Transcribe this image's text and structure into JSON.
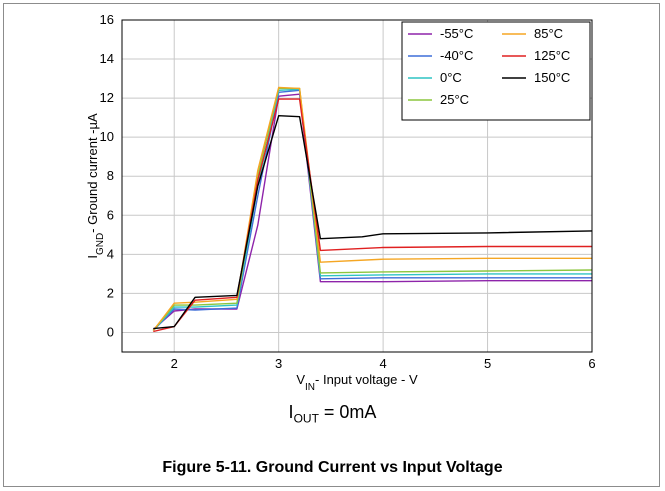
{
  "chart_data": {
    "type": "line",
    "title": "",
    "xlabel": {
      "main": "V",
      "sub": "IN",
      "rest": "- Input voltage - V"
    },
    "ylabel": {
      "main": "I",
      "sub": "GND",
      "rest": "- Ground current -µA"
    },
    "xlim": [
      1.5,
      6
    ],
    "ylim": [
      -1,
      16
    ],
    "xticks": [
      2,
      3,
      4,
      5,
      6
    ],
    "yticks": [
      0,
      2,
      4,
      6,
      8,
      10,
      12,
      14,
      16
    ],
    "grid": true,
    "legend": "top-right",
    "series": [
      {
        "name": "-55°C",
        "color": "#8e24aa",
        "x": [
          1.8,
          2.0,
          2.2,
          2.6,
          2.8,
          3.0,
          3.2,
          3.4,
          4.0,
          5.0,
          6.0
        ],
        "y": [
          0.15,
          1.1,
          1.2,
          1.2,
          5.5,
          12.1,
          12.2,
          2.6,
          2.6,
          2.65,
          2.65
        ]
      },
      {
        "name": "-40°C",
        "color": "#3f6ed8",
        "x": [
          1.8,
          2.0,
          2.2,
          2.6,
          2.8,
          3.0,
          3.2,
          3.4,
          4.0,
          5.0,
          6.0
        ],
        "y": [
          0.1,
          1.2,
          1.15,
          1.25,
          7.0,
          12.3,
          12.4,
          2.75,
          2.8,
          2.8,
          2.8
        ]
      },
      {
        "name": "0°C",
        "color": "#2ec4c4",
        "x": [
          1.8,
          2.0,
          2.2,
          2.6,
          2.8,
          3.0,
          3.2,
          3.4,
          4.0,
          5.0,
          6.0
        ],
        "y": [
          0.1,
          1.3,
          1.3,
          1.4,
          7.5,
          12.4,
          12.45,
          2.9,
          2.95,
          3.0,
          3.0
        ]
      },
      {
        "name": "25°C",
        "color": "#8cc63f",
        "x": [
          1.8,
          2.0,
          2.2,
          2.6,
          2.8,
          3.0,
          3.2,
          3.4,
          4.0,
          5.0,
          6.0
        ],
        "y": [
          0.1,
          1.4,
          1.4,
          1.5,
          8.0,
          12.5,
          12.5,
          3.05,
          3.1,
          3.15,
          3.2
        ]
      },
      {
        "name": "85°C",
        "color": "#f5a623",
        "x": [
          1.8,
          2.0,
          2.2,
          2.6,
          2.8,
          3.0,
          3.2,
          3.4,
          4.0,
          5.0,
          6.0
        ],
        "y": [
          0.1,
          1.5,
          1.55,
          1.7,
          8.3,
          12.55,
          12.5,
          3.6,
          3.75,
          3.8,
          3.8
        ]
      },
      {
        "name": "125°C",
        "color": "#e02020",
        "x": [
          1.8,
          2.0,
          2.2,
          2.6,
          2.8,
          3.0,
          3.2,
          3.4,
          4.0,
          5.0,
          6.0
        ],
        "y": [
          0.05,
          0.3,
          1.65,
          1.8,
          7.8,
          11.95,
          11.95,
          4.2,
          4.35,
          4.4,
          4.4
        ]
      },
      {
        "name": "150°C",
        "color": "#000000",
        "x": [
          1.8,
          2.0,
          2.2,
          2.6,
          2.8,
          3.0,
          3.2,
          3.4,
          3.8,
          4.0,
          5.0,
          6.0
        ],
        "y": [
          0.2,
          0.3,
          1.8,
          1.9,
          7.5,
          11.1,
          11.05,
          4.8,
          4.9,
          5.05,
          5.1,
          5.2
        ]
      }
    ],
    "annotation": {
      "main": "I",
      "sub": "OUT",
      "rest": " = 0mA"
    }
  },
  "caption": "Figure 5-11. Ground Current vs Input Voltage"
}
